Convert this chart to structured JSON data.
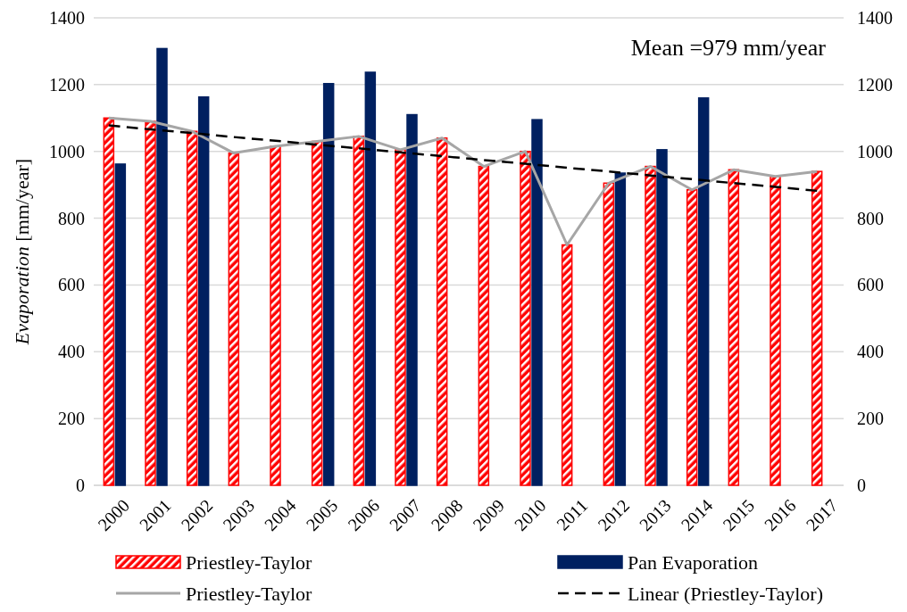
{
  "chart_data": {
    "type": "bar",
    "categories": [
      "2000",
      "2001",
      "2002",
      "2003",
      "2004",
      "2005",
      "2006",
      "2007",
      "2008",
      "2009",
      "2010",
      "2011",
      "2012",
      "2013",
      "2014",
      "2015",
      "2016",
      "2017"
    ],
    "ylabel": "Evaporation [mm/year]",
    "annotations": [
      "Mean =979 mm/year"
    ],
    "series": [
      {
        "name": "Priestley-Taylor",
        "color": "#ff0000",
        "values": [
          1100,
          1090,
          1060,
          995,
          1015,
          1030,
          1045,
          1005,
          1040,
          955,
          1000,
          720,
          905,
          955,
          885,
          945,
          925,
          940
        ]
      },
      {
        "name": "Pan Evaporation",
        "color": "#002060",
        "values": [
          962,
          1308,
          1163,
          null,
          null,
          1203,
          1237,
          1110,
          null,
          null,
          1095,
          null,
          935,
          1005,
          1160,
          null,
          null,
          null
        ]
      },
      {
        "name": "Priestley-Taylor",
        "type": "line",
        "color": "#a6a6a6",
        "line_style": "solid",
        "values": [
          1100,
          1090,
          1060,
          995,
          1015,
          1030,
          1045,
          1005,
          1040,
          955,
          1000,
          720,
          905,
          955,
          885,
          945,
          925,
          940
        ]
      },
      {
        "name": "Linear (Priestley-Taylor)",
        "type": "line",
        "color": "#000000",
        "line_style": "dashed",
        "values": [
          1078,
          1066,
          1055,
          1043,
          1032,
          1020,
          1009,
          997,
          986,
          974,
          963,
          951,
          940,
          928,
          917,
          905,
          894,
          882
        ]
      }
    ],
    "ylim": [
      0,
      1400
    ],
    "yticks": [
      0,
      200,
      400,
      600,
      800,
      1000,
      1200,
      1400
    ],
    "y2lim": [
      0,
      1400
    ],
    "y2ticks": [
      0,
      200,
      400,
      600,
      800,
      1000,
      1200,
      1400
    ],
    "grid": "y",
    "legend": "bottom"
  }
}
